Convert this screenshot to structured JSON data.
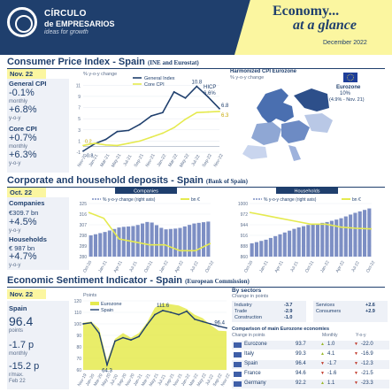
{
  "header": {
    "brand_line1": "CÍRCULO",
    "brand_line2": "de EMPRESARIOS",
    "brand_line3": "ideas for growth",
    "title_line1": "Economy...",
    "title_line2": "at a glance",
    "date": "December 2022"
  },
  "cpi": {
    "title": "Consumer Price Index - Spain",
    "source": "(INE and Eurostat)",
    "date": "Nov. 22",
    "general_label": "General CPI",
    "general_monthly": "-0.1%",
    "general_monthly_label": "monthly",
    "general_yoy": "+6.8%",
    "general_yoy_label": "y-o-y",
    "core_label": "Core CPI",
    "core_monthly": "+0.7%",
    "core_monthly_label": "monthly",
    "core_yoy": "+6.3%",
    "core_yoy_label": "y-o-y",
    "chart_unit": "% y-o-y change",
    "hicp_label": "HICP",
    "hicp_value": "6.6%",
    "map_title": "Harmonized CPI Eurozone",
    "map_unit": "% y-o-y change",
    "eurozone_label": "Eurozone",
    "eurozone_value": "10%",
    "eurozone_note": "(4.9% - Nov. 21)"
  },
  "deposits": {
    "title": "Corporate and household deposits - Spain",
    "source": "(Bank of Spain)",
    "date": "Oct. 22",
    "companies_label": "Companies",
    "companies_amount": "€309.7 bn",
    "companies_yoy": "+4.5%",
    "companies_yoy_label": "y-o-y",
    "households_label": "Households",
    "households_amount": "€ 987 bn",
    "households_yoy": "+4.7%",
    "households_yoy_label": "y-o-y",
    "companies_tab": "Companies",
    "households_tab": "Households",
    "legend_yoy": "% y-o-y change (right axis)",
    "legend_bn": "bn €"
  },
  "esi": {
    "title": "Economic Sentiment Indicator - Spain",
    "source": "(European Commission)",
    "date": "Nov. 22",
    "spain_label": "Spain",
    "spain_value": "96.4",
    "spain_unit": "points",
    "monthly_value": "-1.7 p",
    "monthly_label": "monthly",
    "max_value": "-15.2 p",
    "max_label": "r/max.",
    "max_date": "Feb 22",
    "points_label": "Points",
    "sectors_title": "By sectors",
    "sectors_sub": "Change in points",
    "sectors": [
      {
        "name": "Industry",
        "value": "-3.7"
      },
      {
        "name": "Trade",
        "value": "-2.9"
      },
      {
        "name": "Construction",
        "value": "-1.0"
      },
      {
        "name": "Services",
        "value": "+2.6"
      },
      {
        "name": "Consumers",
        "value": "+2.9"
      }
    ],
    "table_title": "Comparison of main Eurozone economies",
    "table_headers": [
      "Change in points",
      "Monthly",
      "Y-o-y"
    ],
    "table": [
      {
        "country": "Eurozone",
        "value": "93.7",
        "monthly": "1.0",
        "yoy": "-22.0"
      },
      {
        "country": "Italy",
        "value": "99.3",
        "monthly": "4.1",
        "yoy": "-16.9"
      },
      {
        "country": "Spain",
        "value": "96.4",
        "monthly": "-1.7",
        "yoy": "-12.3"
      },
      {
        "country": "France",
        "value": "94.6",
        "monthly": "-1.6",
        "yoy": "-21.5"
      },
      {
        "country": "Germany",
        "value": "92.2",
        "monthly": "1.1",
        "yoy": "-23.3"
      }
    ]
  },
  "colors": {
    "navy": "#1f3f6d",
    "yellow": "#fbf6a0",
    "chart_yellow": "#e5ea4f",
    "blue_bar": "#7d8fc4"
  },
  "chart_data": [
    {
      "type": "line",
      "title": "",
      "ylabel": "% y-o-y change",
      "ylim": [
        -1,
        12
      ],
      "x": [
        "Nov-20",
        "Jan-21",
        "Mar-21",
        "May-21",
        "Jul-21",
        "Sep-21",
        "Nov-21",
        "Jan-22",
        "Mar-22",
        "May-22",
        "Jul-22",
        "Sep-22",
        "Nov-22"
      ],
      "series": [
        {
          "name": "General Index",
          "values": [
            -0.8,
            0.5,
            1.3,
            2.7,
            2.9,
            4.0,
            5.5,
            6.1,
            9.8,
            8.7,
            10.8,
            8.9,
            6.8
          ]
        },
        {
          "name": "Core CPI",
          "values": [
            0.2,
            0.6,
            0.3,
            0.2,
            0.6,
            1.0,
            1.7,
            2.4,
            3.4,
            4.9,
            6.1,
            6.2,
            6.3
          ]
        }
      ],
      "annotations": [
        "10.8",
        "6.8",
        "6.3",
        "0.2",
        "-0.8"
      ]
    },
    {
      "type": "bar",
      "title": "Companies",
      "ylabel": "bn €",
      "ylim": [
        280,
        325
      ],
      "x": [
        "Oct-20",
        "Jan-21",
        "Apr-21",
        "Jul-21",
        "Oct-21",
        "Jan-22",
        "Apr-22",
        "Jul-22",
        "Oct-22"
      ],
      "series": [
        {
          "name": "bn €",
          "values": [
            298,
            301,
            305,
            306,
            310,
            303,
            304,
            308,
            309.7
          ]
        },
        {
          "name": "% y-o-y change (right axis)",
          "values": [
            15,
            13,
            6,
            5,
            4,
            4,
            2,
            2,
            4.5
          ]
        }
      ]
    },
    {
      "type": "bar",
      "title": "Households",
      "ylabel": "bn €",
      "ylim": [
        860,
        1000
      ],
      "x": [
        "Oct-20",
        "Jan-21",
        "Apr-21",
        "Jul-21",
        "Oct-21",
        "Jan-22",
        "Apr-22",
        "Jul-22",
        "Oct-22"
      ],
      "series": [
        {
          "name": "bn €",
          "values": [
            895,
            905,
            920,
            935,
            945,
            950,
            960,
            975,
            987
          ]
        },
        {
          "name": "% y-o-y change (right axis)",
          "values": [
            7.5,
            7.0,
            6.5,
            6.0,
            5.5,
            5.5,
            5.0,
            4.8,
            4.7
          ]
        }
      ]
    },
    {
      "type": "area",
      "title": "",
      "ylabel": "Points",
      "ylim": [
        60,
        120
      ],
      "x": [
        "Nov-19",
        "Jan-20",
        "Mar-20",
        "May-20",
        "Jul-20",
        "Sep-20",
        "Nov-20",
        "Jan-21",
        "Mar-21",
        "May-21",
        "Jul-21",
        "Sep-21",
        "Nov-21",
        "Jan-22",
        "Mar-22",
        "May-22",
        "Jul-22",
        "Sep-22",
        "Nov-22"
      ],
      "series": [
        {
          "name": "Eurozone",
          "values": [
            101,
            102,
            96,
            68,
            87,
            92,
            88,
            92,
            101,
            114,
            118,
            117,
            116,
            113,
            108,
            105,
            99,
            94,
            93.7
          ]
        },
        {
          "name": "Spain",
          "values": [
            100,
            101,
            92,
            64.3,
            85,
            88,
            86,
            89,
            99,
            108,
            111.6,
            110,
            108,
            111,
            104,
            102,
            100,
            98,
            96.4
          ]
        }
      ],
      "annotations": [
        "111.6",
        "96.4",
        "64.3"
      ]
    }
  ]
}
